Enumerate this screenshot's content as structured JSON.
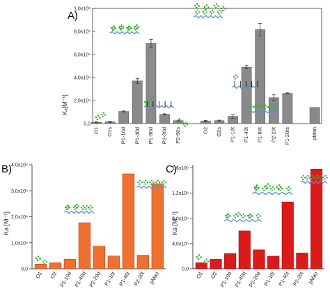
{
  "chart_data": [
    {
      "panel": "A)",
      "type": "bar",
      "ylabel": "Kₐ[M⁻¹]",
      "ylim": [
        0,
        1000000
      ],
      "yticks": [
        {
          "value": 0,
          "label": "0,0"
        },
        {
          "value": 200000,
          "label": "2,0x10⁵"
        },
        {
          "value": 400000,
          "label": "4,0x10⁵"
        },
        {
          "value": 600000,
          "label": "6,0x10⁵"
        },
        {
          "value": 800000,
          "label": "8,0x10⁵"
        },
        {
          "value": 1000000,
          "label": "1,0x10⁶"
        }
      ],
      "categories": [
        "O1",
        "O1s",
        "P1-10d",
        "P1-40d",
        "P1-80d",
        "P2-20d",
        "P2-80s",
        "",
        "O2",
        "O2s",
        "P1-10t",
        "P1-40t",
        "P1-80t",
        "P2-20t",
        "P1-20ts",
        "",
        "pMan"
      ],
      "values": [
        10000,
        15000,
        105000,
        370000,
        695000,
        80000,
        25000,
        null,
        22000,
        25000,
        62000,
        490000,
        815000,
        225000,
        262000,
        null,
        140000
      ],
      "errors": [
        5000,
        5000,
        5000,
        20000,
        35000,
        5000,
        5000,
        null,
        5000,
        5000,
        15000,
        15000,
        55000,
        25000,
        5000,
        null,
        0
      ],
      "colors": {
        "bar": "#8a8a8a",
        "error": "#333333"
      }
    },
    {
      "panel": "B)",
      "type": "bar",
      "ylabel": "Ka [M⁻¹]",
      "ylim": [
        0,
        40000
      ],
      "yticks": [
        {
          "value": 0,
          "label": "0,0"
        },
        {
          "value": 10000,
          "label": "1,0x10⁴"
        },
        {
          "value": 20000,
          "label": "2,0x10⁴"
        },
        {
          "value": 30000,
          "label": "3,0x10⁴"
        },
        {
          "value": 40000,
          "label": "4,0x10⁴"
        }
      ],
      "categories": [
        "O1",
        "O2",
        "P1-10d",
        "P1-40d",
        "P2-20d",
        "P1-10t",
        "P1-40t",
        "P2-20t",
        "pMan"
      ],
      "values": [
        1800,
        2300,
        3700,
        17700,
        8700,
        4900,
        36500,
        5200,
        32700
      ],
      "colors": {
        "bar": "#f07030",
        "border": "#b04010"
      }
    },
    {
      "panel": "C)",
      "type": "bar",
      "ylabel": "Ka [M⁻¹]",
      "ylim": [
        0,
        1650000
      ],
      "yticks": [
        {
          "value": 0,
          "label": "0,0"
        },
        {
          "value": 400000,
          "label": "4,0x10⁵"
        },
        {
          "value": 800000,
          "label": "8,0x10⁵"
        },
        {
          "value": 1200000,
          "label": "1,2x10⁶"
        },
        {
          "value": 1600000,
          "label": "1,6x10⁶"
        }
      ],
      "categories": [
        "O1",
        "O2",
        "P1-10d",
        "P1-40d",
        "P2-20d",
        "P1-10t",
        "P1-40t",
        "P2-20t",
        "pMan"
      ],
      "values": [
        95000,
        150000,
        240000,
        600000,
        300000,
        200000,
        1060000,
        250000,
        1580000
      ],
      "colors": {
        "bar": "#dd1a1a",
        "border": "#9a0a0a"
      }
    }
  ],
  "icon_names": [
    "disaccharide-cluster-icon",
    "polymer-chain-icon"
  ],
  "icon_colors": {
    "sugar": "#33b033",
    "chain": "#5b8fd0",
    "stick": "#111111"
  }
}
